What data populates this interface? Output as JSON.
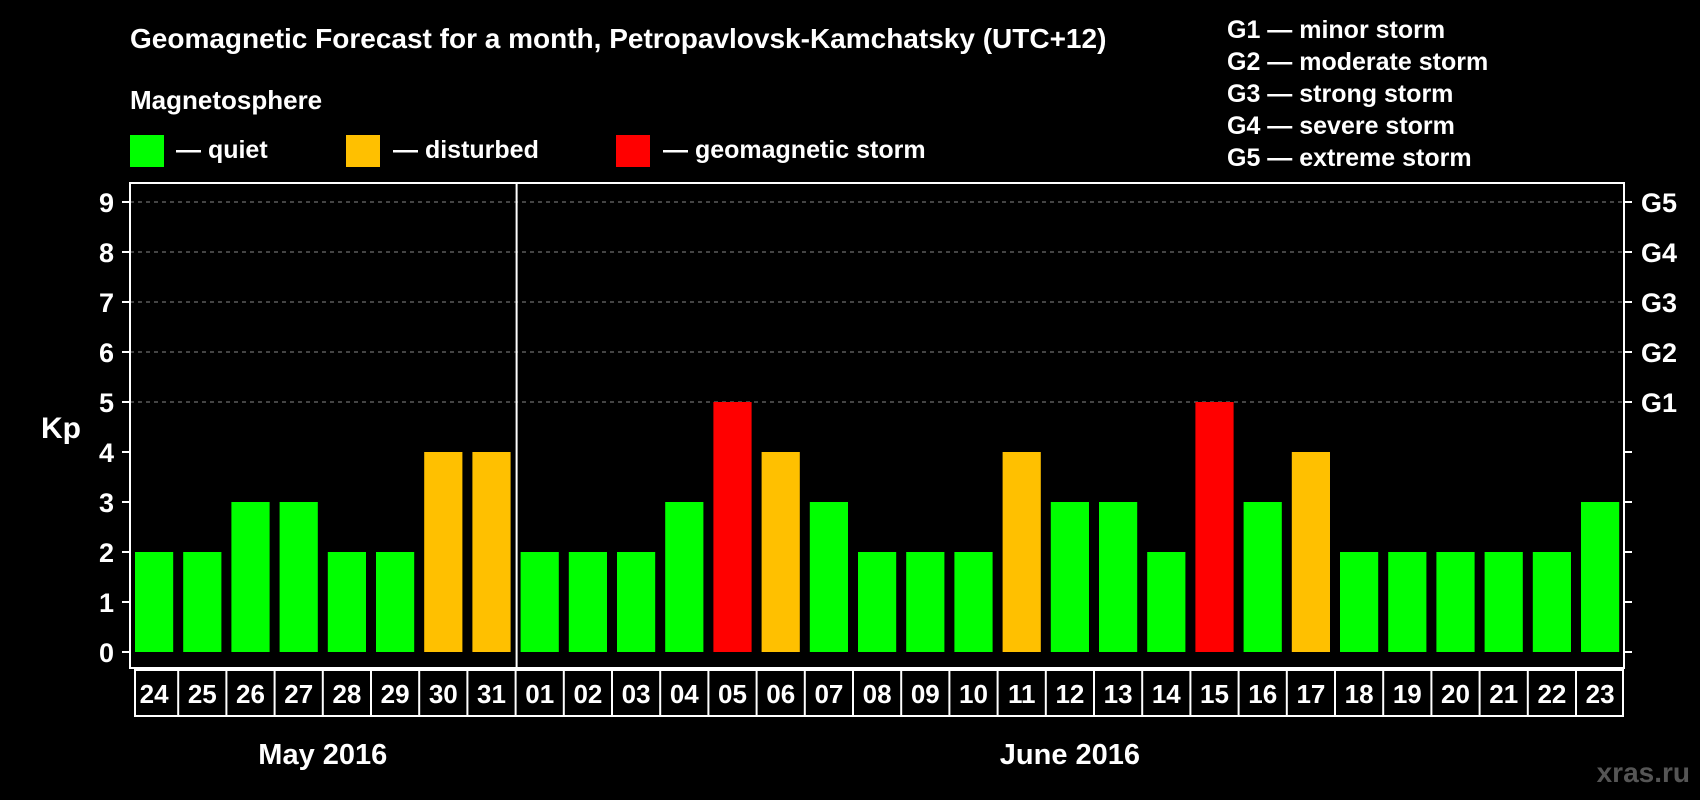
{
  "chart_data": {
    "type": "bar",
    "title": "Geomagnetic Forecast for a month, Petropavlovsk-Kamchatsky (UTC+12)",
    "subtitle": "Magnetosphere",
    "ylabel": "Kp",
    "ylim": [
      0,
      9
    ],
    "yticks": [
      "0",
      "1",
      "2",
      "3",
      "4",
      "5",
      "6",
      "7",
      "8",
      "9"
    ],
    "right_axis_labels": [
      {
        "kp": 5,
        "label": "G1"
      },
      {
        "kp": 6,
        "label": "G2"
      },
      {
        "kp": 7,
        "label": "G3"
      },
      {
        "kp": 8,
        "label": "G4"
      },
      {
        "kp": 9,
        "label": "G5"
      }
    ],
    "categories": [
      "24",
      "25",
      "26",
      "27",
      "28",
      "29",
      "30",
      "31",
      "01",
      "02",
      "03",
      "04",
      "05",
      "06",
      "07",
      "08",
      "09",
      "10",
      "11",
      "12",
      "13",
      "14",
      "15",
      "16",
      "17",
      "18",
      "19",
      "20",
      "21",
      "22",
      "23"
    ],
    "values": [
      2,
      2,
      3,
      3,
      2,
      2,
      4,
      4,
      2,
      2,
      2,
      3,
      5,
      4,
      3,
      2,
      2,
      2,
      4,
      3,
      3,
      2,
      5,
      3,
      4,
      2,
      2,
      2,
      2,
      2,
      3
    ],
    "months": [
      {
        "label": "May 2016",
        "start_index": 0,
        "end_index": 7
      },
      {
        "label": "June 2016",
        "start_index": 8,
        "end_index": 30
      }
    ],
    "status_legend": [
      {
        "key": "quiet",
        "label": "— quiet",
        "color": "#00FF00"
      },
      {
        "key": "disturbed",
        "label": "— disturbed",
        "color": "#FFC000"
      },
      {
        "key": "storm",
        "label": "— geomagnetic storm",
        "color": "#FF0000"
      }
    ],
    "storm_scale": [
      "G1 — minor storm",
      "G2 — moderate storm",
      "G3 — strong storm",
      "G4 — severe storm",
      "G5 — extreme storm"
    ],
    "gridlines": "dashed",
    "watermark": "xras.ru"
  }
}
